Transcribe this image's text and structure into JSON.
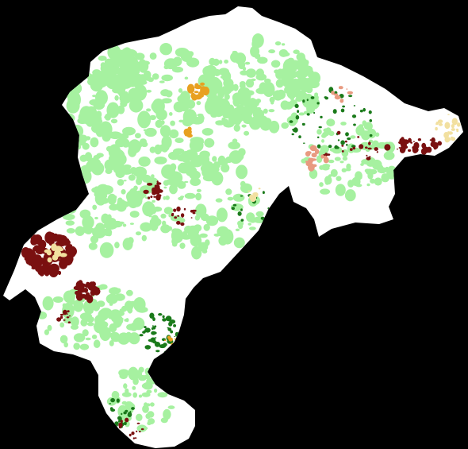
{
  "map": {
    "background_color": "#000000",
    "region_color": "#ffffff",
    "land_cover_classes": [
      {
        "name": "light-green",
        "color": "#a6f1a0"
      },
      {
        "name": "dark-green",
        "color": "#1a7a1a"
      },
      {
        "name": "dark-red",
        "color": "#7a1010"
      },
      {
        "name": "orange",
        "color": "#e8a020"
      },
      {
        "name": "salmon",
        "color": "#e89a80"
      },
      {
        "name": "pale-yellow",
        "color": "#f2e0a0"
      }
    ]
  }
}
